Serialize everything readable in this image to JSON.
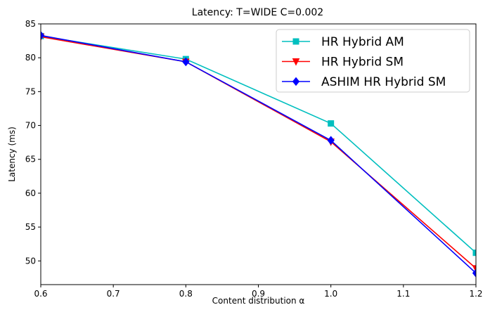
{
  "chart_data": {
    "type": "line",
    "title": "Latency: T=WIDE C=0.002",
    "xlabel": "Content distribution α",
    "ylabel": "Latency (ms)",
    "xlim": [
      0.6,
      1.2
    ],
    "ylim": [
      46.5,
      85.0
    ],
    "xticks": [
      0.6,
      0.7,
      0.8,
      0.9,
      1.0,
      1.1,
      1.2
    ],
    "xtick_labels": [
      "0.6",
      "0.7",
      "0.8",
      "0.9",
      "1.0",
      "1.1",
      "1.2"
    ],
    "yticks": [
      50,
      55,
      60,
      65,
      70,
      75,
      80,
      85
    ],
    "ytick_labels": [
      "50",
      "55",
      "60",
      "65",
      "70",
      "75",
      "80",
      "85"
    ],
    "grid": false,
    "legend_position": "top-right",
    "x": [
      0.6,
      0.8,
      1.0,
      1.2
    ],
    "series": [
      {
        "name": "HR Hybrid AM",
        "color": "#00bfbf",
        "marker": "square",
        "values": [
          83.2,
          79.8,
          70.3,
          51.2
        ]
      },
      {
        "name": "HR Hybrid SM",
        "color": "#ff0000",
        "marker": "triangle-down",
        "values": [
          83.1,
          79.4,
          67.6,
          48.9
        ]
      },
      {
        "name": "ASHIM HR Hybrid SM",
        "color": "#0000ff",
        "marker": "diamond",
        "values": [
          83.3,
          79.4,
          67.8,
          48.2
        ]
      }
    ]
  }
}
